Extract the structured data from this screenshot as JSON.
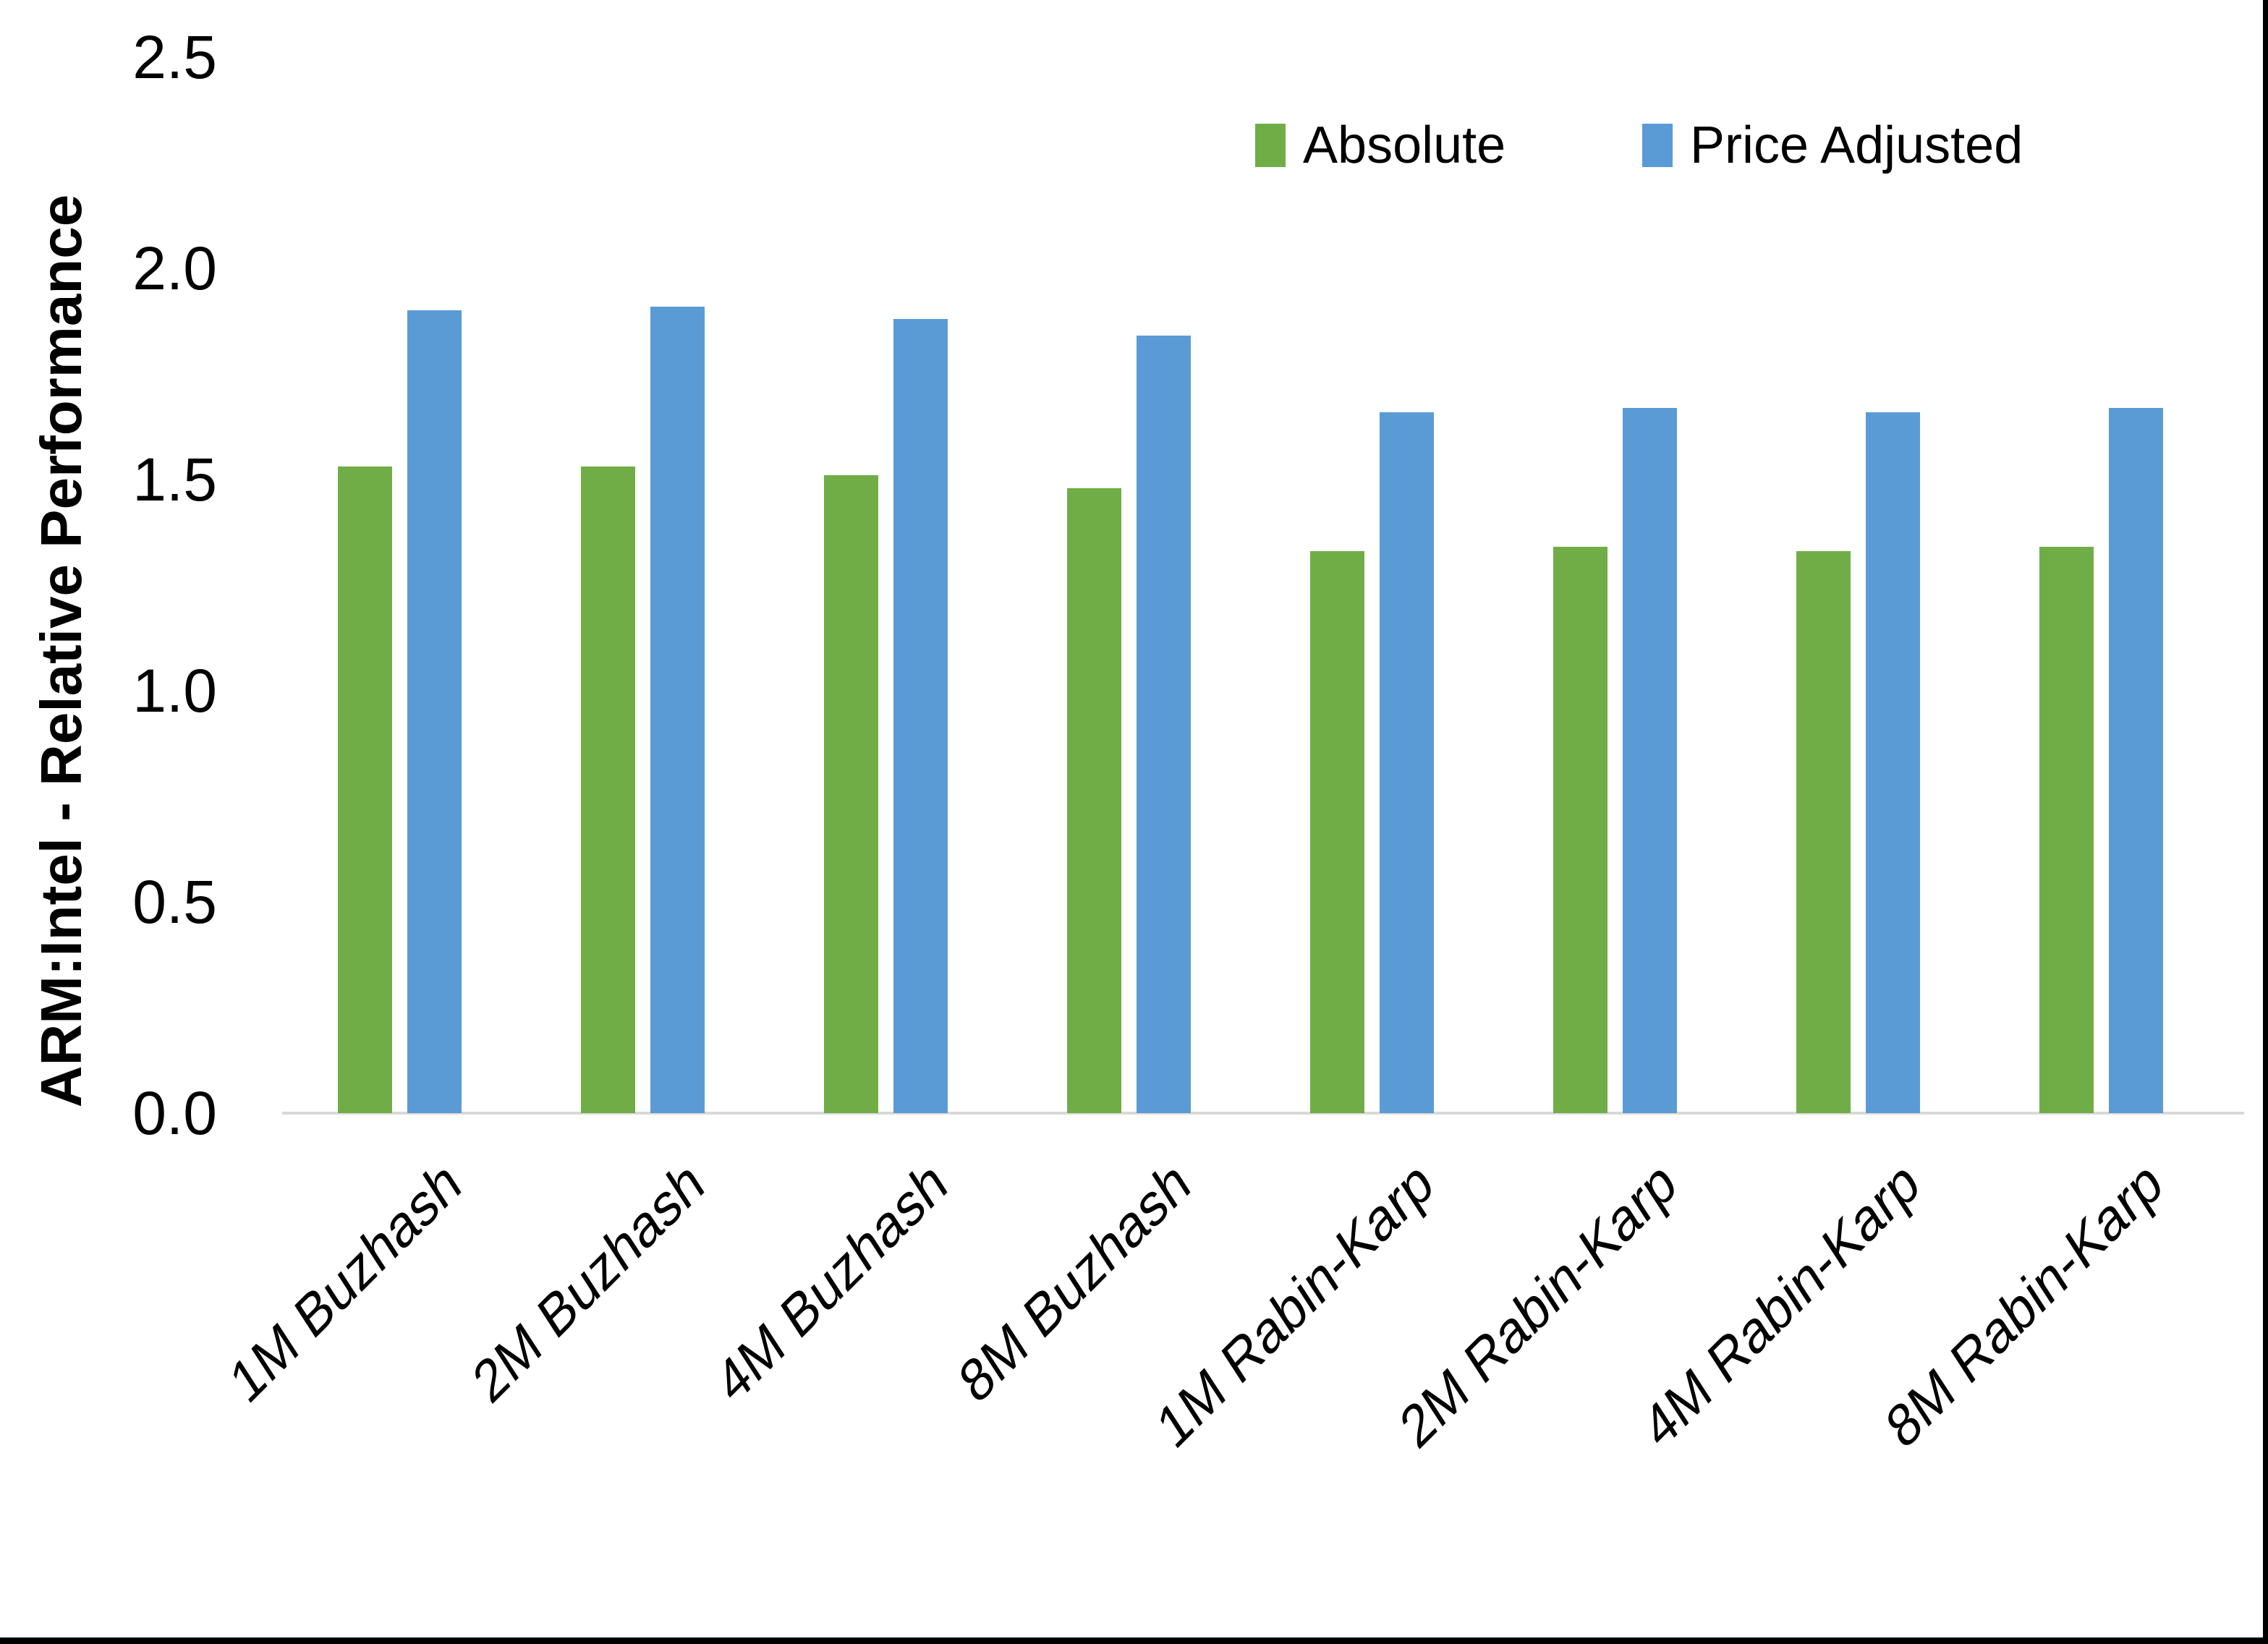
{
  "chart_data": {
    "type": "bar",
    "title": "",
    "ylabel": "ARM:Intel - Relative Performance",
    "xlabel": "",
    "categories": [
      "1M Buzhash",
      "2M Buzhash",
      "4M Buzhash",
      "8M Buzhash",
      "1M Rabin-Karp",
      "2M Rabin-Karp",
      "4M Rabin-Karp",
      "8M Rabin-Karp"
    ],
    "series": [
      {
        "name": "Absolute",
        "color": "#70AD47",
        "values": [
          1.53,
          1.53,
          1.51,
          1.48,
          1.33,
          1.34,
          1.33,
          1.34
        ]
      },
      {
        "name": "Price Adjusted",
        "color": "#5B9BD5",
        "values": [
          1.9,
          1.91,
          1.88,
          1.84,
          1.66,
          1.67,
          1.66,
          1.67
        ]
      }
    ],
    "ylim": [
      0.0,
      2.5
    ],
    "ytick_labels": [
      "0.0",
      "0.5",
      "1.0",
      "1.5",
      "2.0",
      "2.5"
    ],
    "ytick_step": 0.5,
    "grid": false,
    "legend_position": "top-right",
    "baseline_color": "#d9d9d9"
  }
}
